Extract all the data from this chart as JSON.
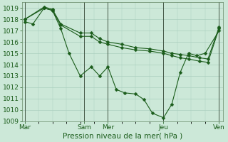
{
  "xlabel": "Pression niveau de la mer( hPa )",
  "ylim": [
    1009,
    1019.5
  ],
  "yticks": [
    1009,
    1010,
    1011,
    1012,
    1013,
    1014,
    1015,
    1016,
    1017,
    1018,
    1019
  ],
  "bg_color": "#cce8d8",
  "grid_color": "#aacfbe",
  "line_color": "#1a5c1a",
  "series1_x": [
    0,
    0.3,
    0.7,
    1.0,
    1.3,
    1.6,
    2.0,
    2.4,
    2.7,
    3.0,
    3.3,
    3.6,
    4.0,
    4.3,
    4.6,
    5.0,
    5.3,
    5.6,
    5.9,
    6.2,
    6.5,
    7.0
  ],
  "series1_y": [
    1017.8,
    1017.6,
    1019.0,
    1018.8,
    1017.2,
    1015.0,
    1013.0,
    1013.8,
    1013.0,
    1013.8,
    1011.8,
    1011.5,
    1011.4,
    1010.9,
    1009.7,
    1009.3,
    1010.5,
    1013.3,
    1015.0,
    1014.8,
    1015.0,
    1017.0
  ],
  "series2_x": [
    0,
    0.7,
    1.0,
    1.3,
    2.0,
    2.4,
    2.7,
    3.0,
    3.5,
    4.0,
    4.5,
    5.0,
    5.3,
    5.6,
    5.9,
    6.3,
    6.6,
    7.0
  ],
  "series2_y": [
    1018.0,
    1019.0,
    1018.8,
    1017.5,
    1016.5,
    1016.5,
    1016.0,
    1015.8,
    1015.5,
    1015.3,
    1015.2,
    1015.0,
    1014.8,
    1014.6,
    1014.5,
    1014.3,
    1014.2,
    1017.2
  ],
  "series3_x": [
    0,
    0.7,
    1.0,
    1.3,
    2.0,
    2.4,
    2.7,
    3.0,
    3.5,
    4.0,
    4.5,
    5.0,
    5.3,
    5.6,
    5.9,
    6.3,
    6.6,
    7.0
  ],
  "series3_y": [
    1018.0,
    1019.1,
    1018.9,
    1017.6,
    1016.8,
    1016.8,
    1016.3,
    1016.0,
    1015.8,
    1015.5,
    1015.4,
    1015.2,
    1015.0,
    1014.9,
    1014.8,
    1014.6,
    1014.5,
    1017.3
  ],
  "vline_x": [
    0,
    2.15,
    3.0,
    5.0,
    7.0
  ],
  "xtick_pos": [
    0,
    2.15,
    3.0,
    5.0,
    7.0
  ],
  "xtick_labels": [
    "Mar",
    "Sam",
    "Mer",
    "Jeu",
    "Ven"
  ],
  "fontsize_xlabel": 7.5,
  "fontsize_ticks": 6.5
}
